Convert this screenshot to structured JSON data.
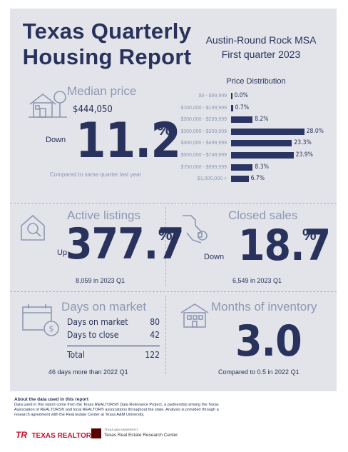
{
  "header": {
    "title_line1": "Texas Quarterly",
    "title_line2": "Housing Report",
    "region": "Austin-Round Rock MSA",
    "period": "First quarter 2023"
  },
  "median_price": {
    "label": "Median price",
    "value": "$444,050",
    "direction": "Down",
    "change": "11.2",
    "pct_sign": "%",
    "note": "Compared to same quarter last year"
  },
  "price_distribution": {
    "title": "Price Distribution",
    "chart_data": {
      "type": "bar",
      "orientation": "horizontal",
      "categories": [
        "$0 - $99,999",
        "$100,000 - $199,999",
        "$200,000 - $299,999",
        "$300,000 - $399,999",
        "$400,000 - $499,999",
        "$500,000 - $749,999",
        "$750,000 - $999,999",
        "$1,000,000 +"
      ],
      "values": [
        0.0,
        0.7,
        8.2,
        28.0,
        23.3,
        23.9,
        8.3,
        6.7
      ],
      "value_labels": [
        "0.0%",
        "0.7%",
        "8.2%",
        "28.0%",
        "23.3%",
        "23.9%",
        "8.3%",
        "6.7%"
      ],
      "xlim": [
        0,
        30
      ]
    }
  },
  "active_listings": {
    "label": "Active listings",
    "direction": "Up",
    "change": "377.7",
    "pct_sign": "%",
    "note": "8,059 in 2023 Q1"
  },
  "closed_sales": {
    "label": "Closed sales",
    "direction": "Down",
    "change": "18.7",
    "pct_sign": "%",
    "note": "6,549 in 2023 Q1"
  },
  "days_on_market": {
    "label": "Days on market",
    "rows": [
      {
        "label": "Days on market",
        "value": "80"
      },
      {
        "label": "Days to close",
        "value": "42"
      }
    ],
    "total_label": "Total",
    "total_value": "122",
    "note": "46 days more than 2022 Q1"
  },
  "months_inventory": {
    "label": "Months of inventory",
    "value": "3.0",
    "note": "Compared to 0.5 in 2022 Q1"
  },
  "about": {
    "heading": "About the data used in this report",
    "body": "Data used in this report come from the Texas REALTORS® Data Relevance Project, a partnership among the Texas Association of REALTORS® and local REALTOR® associations throughout the state. Analysis is provided through a research agreement with the Real Estate Center at Texas A&M University."
  },
  "logos": {
    "tr_mark": "TR",
    "tr_name": "TEXAS REALTORS",
    "rec_small": "TEXAS A&M UNIVERSITY",
    "rec_name": "Texas Real Estate Research Center"
  },
  "colors": {
    "navy": "#28325c",
    "steel": "#8e98b4",
    "panel": "#e2e4e9",
    "bar": "#2b3563",
    "logo_red": "#c8102e"
  }
}
